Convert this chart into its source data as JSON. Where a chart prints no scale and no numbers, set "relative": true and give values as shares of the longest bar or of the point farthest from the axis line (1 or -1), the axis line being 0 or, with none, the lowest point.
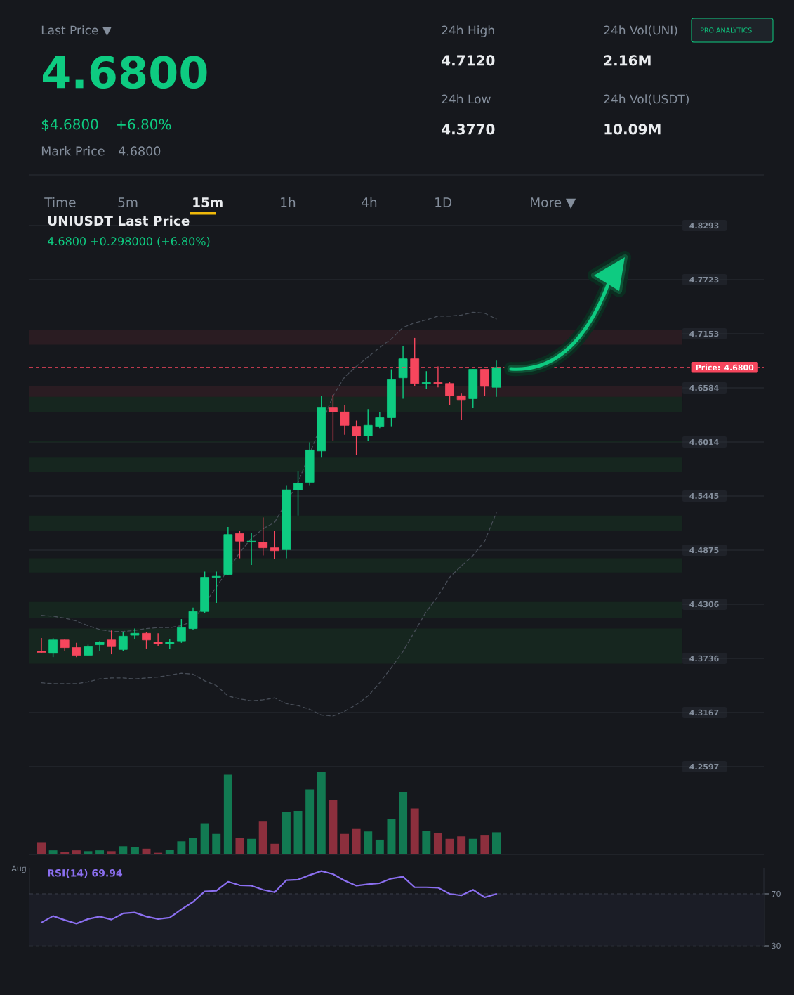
{
  "chart_data": [
    {
      "type": "other",
      "annotations": [
        "Last Price ▼",
        "4.6800",
        "$4.6800",
        "+6.80%",
        "Mark Price",
        "4.6800",
        "24h High",
        "4.7120",
        "24h Low",
        "4.3770",
        "24h Vol(UNI)",
        "2.16M",
        "24h Vol(USDT)",
        "10.09M",
        "PRO ANALYTICS",
        "Time",
        "5m",
        "15m",
        "1h",
        "4h",
        "1D",
        "More ▼"
      ]
    },
    {
      "type": "candlestick",
      "title": "UNIUSDT Last Price",
      "subtitle": "4.6800 +0.298000 (+6.80%)",
      "categories": [
        null,
        null,
        null,
        null,
        null,
        null,
        null,
        null,
        null,
        null,
        null,
        null,
        null,
        null,
        null,
        null,
        null,
        null,
        null,
        null,
        null,
        null,
        null,
        null,
        null,
        null,
        null,
        null,
        null,
        null,
        null,
        null,
        null,
        null,
        null,
        null,
        null,
        null,
        null,
        null
      ],
      "ohlc": [
        [
          4.381,
          4.395,
          4.379,
          4.38
        ],
        [
          4.379,
          4.395,
          4.375,
          4.393
        ],
        [
          4.393,
          4.394,
          4.381,
          4.385
        ],
        [
          4.385,
          4.39,
          4.375,
          4.377
        ],
        [
          4.377,
          4.388,
          4.376,
          4.386
        ],
        [
          4.388,
          4.392,
          4.381,
          4.391
        ],
        [
          4.393,
          4.403,
          4.378,
          4.386
        ],
        [
          4.383,
          4.401,
          4.381,
          4.397
        ],
        [
          4.398,
          4.405,
          4.394,
          4.4
        ],
        [
          4.4,
          4.401,
          4.384,
          4.393
        ],
        [
          4.391,
          4.4,
          4.387,
          4.389
        ],
        [
          4.389,
          4.394,
          4.384,
          4.391
        ],
        [
          4.392,
          4.415,
          4.39,
          4.406
        ],
        [
          4.405,
          4.427,
          4.404,
          4.423
        ],
        [
          4.423,
          4.465,
          4.421,
          4.459
        ],
        [
          4.459,
          4.465,
          4.432,
          4.46
        ],
        [
          4.462,
          4.512,
          4.461,
          4.504
        ],
        [
          4.505,
          4.508,
          4.479,
          4.497
        ],
        [
          4.496,
          4.506,
          4.472,
          4.497
        ],
        [
          4.496,
          4.522,
          4.482,
          4.49
        ],
        [
          4.49,
          4.508,
          4.478,
          4.487
        ],
        [
          4.488,
          4.556,
          4.479,
          4.551
        ],
        [
          4.551,
          4.571,
          4.524,
          4.558
        ],
        [
          4.559,
          4.601,
          4.556,
          4.593
        ],
        [
          4.592,
          4.65,
          4.585,
          4.638
        ],
        [
          4.638,
          4.651,
          4.603,
          4.633
        ],
        [
          4.633,
          4.64,
          4.609,
          4.619
        ],
        [
          4.618,
          4.624,
          4.588,
          4.608
        ],
        [
          4.608,
          4.636,
          4.603,
          4.619
        ],
        [
          4.618,
          4.633,
          4.616,
          4.627
        ],
        [
          4.627,
          4.678,
          4.618,
          4.667
        ],
        [
          4.669,
          4.702,
          4.647,
          4.689
        ],
        [
          4.689,
          4.711,
          4.66,
          4.663
        ],
        [
          4.663,
          4.676,
          4.657,
          4.664
        ],
        [
          4.664,
          4.681,
          4.659,
          4.663
        ],
        [
          4.663,
          4.665,
          4.64,
          4.65
        ],
        [
          4.65,
          4.653,
          4.625,
          4.646
        ],
        [
          4.647,
          4.678,
          4.637,
          4.678
        ],
        [
          4.678,
          4.678,
          4.65,
          4.66
        ],
        [
          4.659,
          4.687,
          4.649,
          4.68
        ]
      ],
      "colors": [
        "#f6465d",
        "#0ecb81",
        "#f6465d",
        "#f6465d",
        "#0ecb81",
        "#0ecb81",
        "#f6465d",
        "#0ecb81",
        "#0ecb81",
        "#f6465d",
        "#f6465d",
        "#0ecb81",
        "#0ecb81",
        "#0ecb81",
        "#0ecb81",
        "#0ecb81",
        "#0ecb81",
        "#f6465d",
        "#0ecb81",
        "#f6465d",
        "#f6465d",
        "#0ecb81",
        "#0ecb81",
        "#0ecb81",
        "#0ecb81",
        "#f6465d",
        "#f6465d",
        "#f6465d",
        "#0ecb81",
        "#0ecb81",
        "#0ecb81",
        "#0ecb81",
        "#f6465d",
        "#0ecb81",
        "#f6465d",
        "#f6465d",
        "#f6465d",
        "#0ecb81",
        "#f6465d",
        "#0ecb81"
      ],
      "series": [
        {
          "type": "line",
          "color": "#474d57",
          "line_style": "dashed",
          "values": [
            4.419,
            4.418,
            4.416,
            4.413,
            4.408,
            4.404,
            4.402,
            4.402,
            4.403,
            4.405,
            4.406,
            4.406,
            4.408,
            4.413,
            null,
            4.449,
            null,
            4.485,
            4.5,
            4.51,
            4.517,
            null,
            4.559,
            null,
            null,
            4.65,
            4.67,
            4.681,
            4.691,
            4.701,
            4.71,
            4.722,
            4.727,
            4.73,
            4.734,
            4.734,
            4.735,
            4.738,
            4.737,
            4.731
          ]
        },
        {
          "type": "line",
          "color": "#474d57",
          "line_style": "dashed",
          "values": [
            4.348,
            4.347,
            4.347,
            4.347,
            4.349,
            4.352,
            4.353,
            4.353,
            4.352,
            4.353,
            4.354,
            4.356,
            4.358,
            4.357,
            4.35,
            4.345,
            4.334,
            4.331,
            4.329,
            4.33,
            4.332,
            4.326,
            4.324,
            4.32,
            4.314,
            4.313,
            4.318,
            4.325,
            4.334,
            4.348,
            4.364,
            4.381,
            4.402,
            4.423,
            4.439,
            4.459,
            4.471,
            4.482,
            4.497,
            4.527
          ]
        }
      ],
      "ylim": [
        4.2597,
        4.8293
      ],
      "yticks": [
        4.2597,
        4.3167,
        4.3736,
        4.4306,
        4.4875,
        4.5445,
        4.6014,
        4.6584,
        4.7153,
        4.7723,
        4.8293
      ],
      "grid": "y",
      "tick_labels": "y",
      "ref_lines": [
        {
          "axis": "y",
          "value": 4.68,
          "label": "Price: 4.6800",
          "color": "#f6465d",
          "line_style": "dashed"
        }
      ],
      "bands": [
        {
          "axis": "y",
          "from": 4.704,
          "to": 4.719,
          "color": "#2a1c22"
        },
        {
          "axis": "y",
          "from": 4.645,
          "to": 4.66,
          "color": "#2a1c22"
        },
        {
          "axis": "y",
          "from": 4.633,
          "to": 4.649,
          "color": "#16261f"
        },
        {
          "axis": "y",
          "from": 4.601,
          "to": 4.603,
          "color": "#16261f"
        },
        {
          "axis": "y",
          "from": 4.57,
          "to": 4.585,
          "color": "#16261f"
        },
        {
          "axis": "y",
          "from": 4.508,
          "to": 4.524,
          "color": "#16261f"
        },
        {
          "axis": "y",
          "from": 4.464,
          "to": 4.479,
          "color": "#16261f"
        },
        {
          "axis": "y",
          "from": 4.416,
          "to": 4.433,
          "color": "#16261f"
        },
        {
          "axis": "y",
          "from": 4.368,
          "to": 4.405,
          "color": "#16261f"
        }
      ]
    },
    {
      "type": "bar",
      "relative": true,
      "tick_labels": false,
      "categories": [
        null,
        null,
        null,
        null,
        null,
        null,
        null,
        null,
        null,
        null,
        null,
        null,
        null,
        null,
        null,
        null,
        null,
        null,
        null,
        null,
        null,
        null,
        null,
        null,
        null,
        null,
        null,
        null,
        null,
        null,
        null,
        null,
        null,
        null,
        null,
        null,
        null,
        null,
        null,
        null
      ],
      "values": [
        0.15,
        0.05,
        0.03,
        0.05,
        0.04,
        0.05,
        0.04,
        0.1,
        0.09,
        0.07,
        0.02,
        0.06,
        0.16,
        0.2,
        0.38,
        0.25,
        0.97,
        0.2,
        0.19,
        0.4,
        0.13,
        0.52,
        0.53,
        0.79,
        1,
        0.66,
        0.25,
        0.31,
        0.28,
        0.18,
        0.43,
        0.76,
        0.56,
        0.29,
        0.26,
        0.19,
        0.22,
        0.19,
        0.23,
        0.27
      ],
      "colors": [
        "#8c2f3d",
        "#127a52",
        "#8c2f3d",
        "#8c2f3d",
        "#127a52",
        "#127a52",
        "#8c2f3d",
        "#127a52",
        "#127a52",
        "#8c2f3d",
        "#8c2f3d",
        "#127a52",
        "#127a52",
        "#127a52",
        "#127a52",
        "#127a52",
        "#127a52",
        "#8c2f3d",
        "#127a52",
        "#8c2f3d",
        "#8c2f3d",
        "#127a52",
        "#127a52",
        "#127a52",
        "#127a52",
        "#8c2f3d",
        "#8c2f3d",
        "#8c2f3d",
        "#127a52",
        "#127a52",
        "#127a52",
        "#127a52",
        "#8c2f3d",
        "#127a52",
        "#8c2f3d",
        "#8c2f3d",
        "#8c2f3d",
        "#127a52",
        "#8c2f3d",
        "#127a52"
      ],
      "annotations": [
        "Aug"
      ]
    },
    {
      "type": "line",
      "title": "RSI(14) 69.94",
      "categories": [
        null,
        null,
        null,
        null,
        null,
        null,
        null,
        null,
        null,
        null,
        null,
        null,
        null,
        null,
        null,
        null,
        null,
        null,
        null,
        null,
        null,
        null,
        null,
        null,
        null,
        null,
        null,
        null,
        null,
        null,
        null,
        null,
        null,
        null,
        null,
        null,
        null,
        null,
        null,
        null
      ],
      "series": [
        {
          "color": "#8b6ff0",
          "values": [
            47.9,
            52.9,
            49.8,
            47.1,
            50.6,
            52.5,
            50.2,
            54.9,
            55.6,
            52.5,
            50.6,
            51.7,
            58.0,
            63.8,
            71.9,
            72.3,
            79.3,
            76.6,
            76.2,
            73.1,
            71.2,
            80.5,
            80.9,
            84.4,
            87.5,
            85.1,
            80.1,
            76.2,
            77.4,
            78.2,
            81.7,
            83.2,
            75.0,
            75.0,
            74.7,
            70.0,
            68.8,
            73.1,
            67.3,
            69.94
          ]
        }
      ],
      "ylim": [
        30,
        90
      ],
      "yticks": [
        30,
        70
      ],
      "tick_labels": "y",
      "ref_lines": [
        {
          "axis": "y",
          "value": 70,
          "color": "#3a3f4a",
          "line_style": "dashed"
        },
        {
          "axis": "y",
          "value": 30,
          "color": "#2b2f36",
          "line_style": "dashed"
        }
      ],
      "bands": [
        {
          "axis": "y",
          "from": 30,
          "to": 70,
          "color": "#1b1d26"
        }
      ]
    }
  ]
}
